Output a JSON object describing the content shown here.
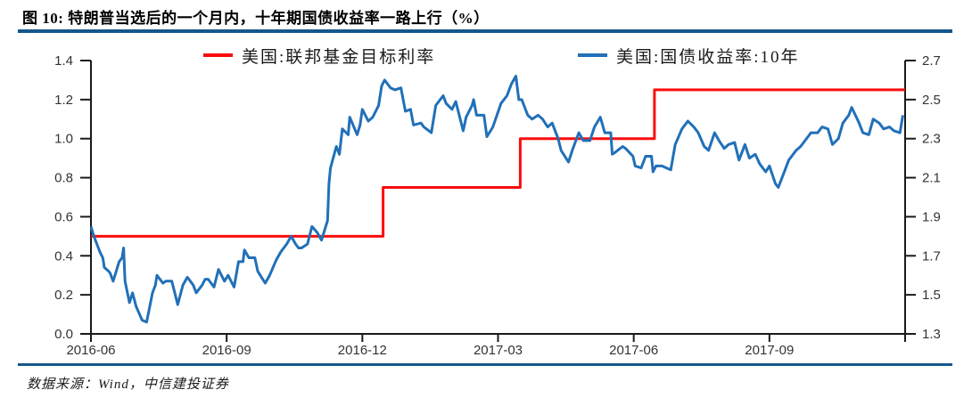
{
  "title": "图 10: 特朗普当选后的一个月内，十年期国债收益率一路上行（%）",
  "source": "数据来源：Wind，中信建投证券",
  "colors": {
    "red_line": "#FB0D0D",
    "blue_line": "#2170B8",
    "divider": "#15568C",
    "axis": "#1a1a1a",
    "tick_text": "#333333"
  },
  "legend": [
    {
      "label": "美国:联邦基金目标利率",
      "color": "#FB0D0D"
    },
    {
      "label": "美国:国债收益率:10年",
      "color": "#2170B8"
    }
  ],
  "chart_data": {
    "type": "line",
    "title": "图 10: 特朗普当选后的一个月内，十年期国债收益率一路上行（%）",
    "legend_position": "top",
    "grid": false,
    "x_domain": [
      "2016-06-01",
      "2017-12-01"
    ],
    "x_tick_labels": [
      "2016-06",
      "2016-09",
      "2016-12",
      "2017-03",
      "2017-06",
      "2017-09"
    ],
    "x_tick_months": [
      0,
      3,
      6,
      9,
      12,
      15
    ],
    "left_axis": {
      "min": 0.0,
      "max": 1.4,
      "tick_step": 0.2,
      "tick_labels": [
        "0.0",
        "0.2",
        "0.4",
        "0.6",
        "0.8",
        "1.0",
        "1.2",
        "1.4"
      ]
    },
    "right_axis": {
      "min": 1.3,
      "max": 2.7,
      "tick_step": 0.2,
      "tick_labels": [
        "1.3",
        "1.5",
        "1.7",
        "1.9",
        "2.1",
        "2.3",
        "2.5",
        "2.7"
      ]
    },
    "series": [
      {
        "name": "美国:联邦基金目标利率",
        "axis": "left",
        "color": "#FB0D0D",
        "style": "step",
        "points": [
          [
            "2016-06-01",
            0.5
          ],
          [
            "2016-12-15",
            0.5
          ],
          [
            "2016-12-15",
            0.75
          ],
          [
            "2017-03-16",
            0.75
          ],
          [
            "2017-03-16",
            1.0
          ],
          [
            "2017-06-15",
            1.0
          ],
          [
            "2017-06-15",
            1.25
          ],
          [
            "2017-12-01",
            1.25
          ]
        ]
      },
      {
        "name": "美国:国债收益率:10年",
        "axis": "right",
        "color": "#2170B8",
        "style": "line",
        "points": [
          [
            "2016-06-01",
            1.85
          ],
          [
            "2016-06-03",
            1.8
          ],
          [
            "2016-06-07",
            1.72
          ],
          [
            "2016-06-09",
            1.69
          ],
          [
            "2016-06-10",
            1.64
          ],
          [
            "2016-06-13",
            1.62
          ],
          [
            "2016-06-14",
            1.61
          ],
          [
            "2016-06-16",
            1.57
          ],
          [
            "2016-06-20",
            1.67
          ],
          [
            "2016-06-22",
            1.69
          ],
          [
            "2016-06-23",
            1.74
          ],
          [
            "2016-06-24",
            1.57
          ],
          [
            "2016-06-27",
            1.46
          ],
          [
            "2016-06-29",
            1.51
          ],
          [
            "2016-07-01",
            1.44
          ],
          [
            "2016-07-05",
            1.37
          ],
          [
            "2016-07-08",
            1.36
          ],
          [
            "2016-07-12",
            1.51
          ],
          [
            "2016-07-14",
            1.55
          ],
          [
            "2016-07-15",
            1.6
          ],
          [
            "2016-07-19",
            1.56
          ],
          [
            "2016-07-21",
            1.57
          ],
          [
            "2016-07-25",
            1.57
          ],
          [
            "2016-07-27",
            1.51
          ],
          [
            "2016-07-29",
            1.45
          ],
          [
            "2016-08-02",
            1.55
          ],
          [
            "2016-08-05",
            1.59
          ],
          [
            "2016-08-09",
            1.55
          ],
          [
            "2016-08-11",
            1.51
          ],
          [
            "2016-08-15",
            1.55
          ],
          [
            "2016-08-17",
            1.58
          ],
          [
            "2016-08-19",
            1.58
          ],
          [
            "2016-08-23",
            1.54
          ],
          [
            "2016-08-26",
            1.63
          ],
          [
            "2016-08-30",
            1.57
          ],
          [
            "2016-09-02",
            1.6
          ],
          [
            "2016-09-06",
            1.54
          ],
          [
            "2016-09-09",
            1.67
          ],
          [
            "2016-09-12",
            1.67
          ],
          [
            "2016-09-13",
            1.73
          ],
          [
            "2016-09-16",
            1.69
          ],
          [
            "2016-09-20",
            1.69
          ],
          [
            "2016-09-22",
            1.62
          ],
          [
            "2016-09-27",
            1.56
          ],
          [
            "2016-09-30",
            1.6
          ],
          [
            "2016-10-04",
            1.68
          ],
          [
            "2016-10-07",
            1.72
          ],
          [
            "2016-10-11",
            1.76
          ],
          [
            "2016-10-14",
            1.8
          ],
          [
            "2016-10-17",
            1.76
          ],
          [
            "2016-10-19",
            1.74
          ],
          [
            "2016-10-21",
            1.74
          ],
          [
            "2016-10-25",
            1.76
          ],
          [
            "2016-10-28",
            1.85
          ],
          [
            "2016-11-01",
            1.82
          ],
          [
            "2016-11-04",
            1.78
          ],
          [
            "2016-11-08",
            1.88
          ],
          [
            "2016-11-09",
            2.07
          ],
          [
            "2016-11-10",
            2.15
          ],
          [
            "2016-11-14",
            2.26
          ],
          [
            "2016-11-16",
            2.22
          ],
          [
            "2016-11-18",
            2.35
          ],
          [
            "2016-11-22",
            2.32
          ],
          [
            "2016-11-23",
            2.41
          ],
          [
            "2016-11-28",
            2.32
          ],
          [
            "2016-11-30",
            2.37
          ],
          [
            "2016-12-01",
            2.45
          ],
          [
            "2016-12-05",
            2.39
          ],
          [
            "2016-12-08",
            2.41
          ],
          [
            "2016-12-12",
            2.47
          ],
          [
            "2016-12-14",
            2.57
          ],
          [
            "2016-12-16",
            2.6
          ],
          [
            "2016-12-20",
            2.56
          ],
          [
            "2016-12-23",
            2.55
          ],
          [
            "2016-12-27",
            2.56
          ],
          [
            "2016-12-30",
            2.44
          ],
          [
            "2017-01-03",
            2.45
          ],
          [
            "2017-01-05",
            2.37
          ],
          [
            "2017-01-10",
            2.38
          ],
          [
            "2017-01-12",
            2.36
          ],
          [
            "2017-01-17",
            2.33
          ],
          [
            "2017-01-20",
            2.47
          ],
          [
            "2017-01-25",
            2.52
          ],
          [
            "2017-01-27",
            2.48
          ],
          [
            "2017-01-31",
            2.45
          ],
          [
            "2017-02-03",
            2.49
          ],
          [
            "2017-02-08",
            2.34
          ],
          [
            "2017-02-10",
            2.41
          ],
          [
            "2017-02-14",
            2.47
          ],
          [
            "2017-02-15",
            2.5
          ],
          [
            "2017-02-17",
            2.42
          ],
          [
            "2017-02-22",
            2.42
          ],
          [
            "2017-02-24",
            2.31
          ],
          [
            "2017-02-28",
            2.36
          ],
          [
            "2017-03-03",
            2.48
          ],
          [
            "2017-03-07",
            2.52
          ],
          [
            "2017-03-10",
            2.58
          ],
          [
            "2017-03-13",
            2.62
          ],
          [
            "2017-03-15",
            2.5
          ],
          [
            "2017-03-17",
            2.5
          ],
          [
            "2017-03-21",
            2.42
          ],
          [
            "2017-03-24",
            2.4
          ],
          [
            "2017-03-28",
            2.42
          ],
          [
            "2017-03-31",
            2.4
          ],
          [
            "2017-04-04",
            2.36
          ],
          [
            "2017-04-07",
            2.38
          ],
          [
            "2017-04-11",
            2.3
          ],
          [
            "2017-04-13",
            2.24
          ],
          [
            "2017-04-18",
            2.18
          ],
          [
            "2017-04-21",
            2.25
          ],
          [
            "2017-04-25",
            2.33
          ],
          [
            "2017-04-28",
            2.29
          ],
          [
            "2017-05-02",
            2.29
          ],
          [
            "2017-05-05",
            2.36
          ],
          [
            "2017-05-09",
            2.41
          ],
          [
            "2017-05-12",
            2.33
          ],
          [
            "2017-05-16",
            2.33
          ],
          [
            "2017-05-17",
            2.22
          ],
          [
            "2017-05-19",
            2.23
          ],
          [
            "2017-05-24",
            2.26
          ],
          [
            "2017-05-26",
            2.25
          ],
          [
            "2017-05-31",
            2.21
          ],
          [
            "2017-06-02",
            2.16
          ],
          [
            "2017-06-06",
            2.15
          ],
          [
            "2017-06-09",
            2.21
          ],
          [
            "2017-06-13",
            2.21
          ],
          [
            "2017-06-14",
            2.13
          ],
          [
            "2017-06-16",
            2.16
          ],
          [
            "2017-06-20",
            2.16
          ],
          [
            "2017-06-23",
            2.15
          ],
          [
            "2017-06-26",
            2.14
          ],
          [
            "2017-06-29",
            2.27
          ],
          [
            "2017-07-03",
            2.35
          ],
          [
            "2017-07-07",
            2.39
          ],
          [
            "2017-07-11",
            2.36
          ],
          [
            "2017-07-14",
            2.33
          ],
          [
            "2017-07-18",
            2.26
          ],
          [
            "2017-07-21",
            2.24
          ],
          [
            "2017-07-25",
            2.33
          ],
          [
            "2017-07-28",
            2.29
          ],
          [
            "2017-08-01",
            2.25
          ],
          [
            "2017-08-04",
            2.27
          ],
          [
            "2017-08-08",
            2.28
          ],
          [
            "2017-08-11",
            2.19
          ],
          [
            "2017-08-15",
            2.27
          ],
          [
            "2017-08-18",
            2.2
          ],
          [
            "2017-08-22",
            2.22
          ],
          [
            "2017-08-25",
            2.17
          ],
          [
            "2017-08-29",
            2.13
          ],
          [
            "2017-09-01",
            2.16
          ],
          [
            "2017-09-05",
            2.07
          ],
          [
            "2017-09-07",
            2.05
          ],
          [
            "2017-09-11",
            2.13
          ],
          [
            "2017-09-14",
            2.19
          ],
          [
            "2017-09-19",
            2.24
          ],
          [
            "2017-09-22",
            2.26
          ],
          [
            "2017-09-27",
            2.31
          ],
          [
            "2017-09-29",
            2.33
          ],
          [
            "2017-10-03",
            2.33
          ],
          [
            "2017-10-06",
            2.36
          ],
          [
            "2017-10-10",
            2.35
          ],
          [
            "2017-10-13",
            2.27
          ],
          [
            "2017-10-17",
            2.3
          ],
          [
            "2017-10-20",
            2.38
          ],
          [
            "2017-10-24",
            2.42
          ],
          [
            "2017-10-26",
            2.46
          ],
          [
            "2017-10-31",
            2.38
          ],
          [
            "2017-11-03",
            2.33
          ],
          [
            "2017-11-07",
            2.32
          ],
          [
            "2017-11-10",
            2.4
          ],
          [
            "2017-11-14",
            2.38
          ],
          [
            "2017-11-17",
            2.35
          ],
          [
            "2017-11-21",
            2.36
          ],
          [
            "2017-11-24",
            2.34
          ],
          [
            "2017-11-28",
            2.33
          ],
          [
            "2017-11-30",
            2.42
          ]
        ]
      }
    ]
  }
}
